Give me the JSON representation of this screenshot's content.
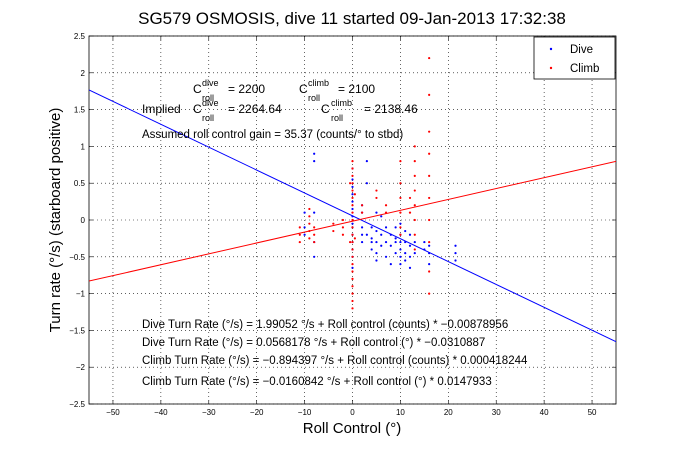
{
  "chart_data": {
    "type": "scatter",
    "title": "SG579 OSMOSIS, dive 11 started 09-Jan-2013 17:32:38",
    "xlabel": "Roll Control (°)",
    "ylabel": "Turn rate (°/s) (starboard positive)",
    "xlim": [
      -55,
      55
    ],
    "ylim": [
      -2.5,
      2.5
    ],
    "xticks": [
      -50,
      -40,
      -30,
      -20,
      -10,
      0,
      10,
      20,
      30,
      40,
      50
    ],
    "yticks": [
      -2.5,
      -2,
      -1.5,
      -1,
      -0.5,
      0,
      0.5,
      1,
      1.5,
      2,
      2.5
    ],
    "xtick_labels": [
      "−50",
      "−40",
      "−30",
      "−20",
      "−10",
      "0",
      "10",
      "20",
      "30",
      "40",
      "50"
    ],
    "ytick_labels": [
      "−2.5",
      "−2",
      "−1.5",
      "−1",
      "−0.5",
      "0",
      "0.5",
      "1",
      "1.5",
      "2",
      "2.5"
    ],
    "grid": true,
    "grid_style": "dotted",
    "legend_position": "top-right",
    "series": [
      {
        "name": "Dive",
        "color": "#0000ff",
        "marker": "dot",
        "points": [
          [
            0,
            0.7
          ],
          [
            0,
            0.55
          ],
          [
            0,
            0.45
          ],
          [
            0,
            0.35
          ],
          [
            0,
            0.25
          ],
          [
            0,
            0.15
          ],
          [
            0,
            0.05
          ],
          [
            0,
            -0.05
          ],
          [
            0,
            -0.1
          ],
          [
            0,
            -0.2
          ],
          [
            0,
            -0.3
          ],
          [
            0,
            -0.4
          ],
          [
            0,
            -0.5
          ],
          [
            0,
            -0.65
          ],
          [
            -8,
            0.9
          ],
          [
            -8,
            0.8
          ],
          [
            -8,
            0.1
          ],
          [
            -8,
            -0.3
          ],
          [
            -8,
            -0.5
          ],
          [
            -10,
            0.1
          ],
          [
            -10,
            -0.1
          ],
          [
            -10,
            -0.2
          ],
          [
            2,
            0.2
          ],
          [
            2,
            0.1
          ],
          [
            2,
            -0.1
          ],
          [
            2,
            -0.2
          ],
          [
            2,
            -0.3
          ],
          [
            3,
            0.8
          ],
          [
            3,
            0.5
          ],
          [
            3,
            -0.2
          ],
          [
            4,
            -0.1
          ],
          [
            4,
            -0.25
          ],
          [
            4,
            -0.3
          ],
          [
            4,
            -0.4
          ],
          [
            5,
            0.1
          ],
          [
            5,
            -0.15
          ],
          [
            5,
            -0.3
          ],
          [
            5,
            -0.45
          ],
          [
            5,
            -0.55
          ],
          [
            6,
            0.05
          ],
          [
            6,
            -0.2
          ],
          [
            6,
            -0.35
          ],
          [
            7,
            -0.1
          ],
          [
            7,
            -0.3
          ],
          [
            7,
            -0.5
          ],
          [
            8,
            -0.2
          ],
          [
            8,
            -0.35
          ],
          [
            8,
            -0.6
          ],
          [
            9,
            -0.1
          ],
          [
            9,
            -0.25
          ],
          [
            9,
            -0.3
          ],
          [
            9,
            -0.45
          ],
          [
            10,
            -0.05
          ],
          [
            10,
            -0.2
          ],
          [
            10,
            -0.3
          ],
          [
            10,
            -0.4
          ],
          [
            10,
            -0.5
          ],
          [
            10,
            -0.6
          ],
          [
            11,
            -0.15
          ],
          [
            11,
            -0.3
          ],
          [
            11,
            -0.45
          ],
          [
            11,
            -0.55
          ],
          [
            12,
            -0.2
          ],
          [
            12,
            -0.35
          ],
          [
            12,
            -0.5
          ],
          [
            12,
            -0.65
          ],
          [
            13,
            -0.3
          ],
          [
            13,
            -0.45
          ],
          [
            15,
            -0.3
          ],
          [
            15,
            -0.4
          ],
          [
            16,
            -0.35
          ],
          [
            16,
            -0.45
          ],
          [
            16,
            -0.6
          ],
          [
            21.5,
            -0.35
          ],
          [
            21.5,
            -0.45
          ],
          [
            21.5,
            -0.55
          ]
        ]
      },
      {
        "name": "Climb",
        "color": "#ff0000",
        "marker": "dot",
        "points": [
          [
            0,
            0.8
          ],
          [
            0,
            0.7
          ],
          [
            0,
            0.6
          ],
          [
            0,
            0.5
          ],
          [
            0,
            0.4
          ],
          [
            0,
            0.3
          ],
          [
            0,
            0.2
          ],
          [
            0,
            0.1
          ],
          [
            0,
            0.0
          ],
          [
            0,
            -0.1
          ],
          [
            0,
            -0.2
          ],
          [
            0,
            -0.3
          ],
          [
            0,
            -0.4
          ],
          [
            0,
            -0.5
          ],
          [
            0,
            -0.6
          ],
          [
            0,
            -0.7
          ],
          [
            0,
            -0.8
          ],
          [
            0,
            -0.9
          ],
          [
            0,
            -1.0
          ],
          [
            0,
            -1.1
          ],
          [
            0,
            -1.2
          ],
          [
            -0.5,
            0.5
          ],
          [
            -0.5,
            -0.3
          ],
          [
            0.5,
            0.35
          ],
          [
            0.5,
            -0.25
          ],
          [
            -11,
            -0.1
          ],
          [
            -11,
            -0.2
          ],
          [
            -11,
            -0.3
          ],
          [
            -9,
            0.15
          ],
          [
            -9,
            0.05
          ],
          [
            -9,
            -0.05
          ],
          [
            -9,
            -0.15
          ],
          [
            -9,
            -0.25
          ],
          [
            -8,
            -0.1
          ],
          [
            -8,
            -0.2
          ],
          [
            -8,
            -0.3
          ],
          [
            -4,
            -0.05
          ],
          [
            -4,
            -0.15
          ],
          [
            -2,
            0.0
          ],
          [
            -2,
            -0.1
          ],
          [
            -2,
            -0.2
          ],
          [
            2,
            0.2
          ],
          [
            2,
            0.1
          ],
          [
            5,
            0.4
          ],
          [
            5,
            0.3
          ],
          [
            7,
            0.2
          ],
          [
            7,
            0.1
          ],
          [
            10,
            0.8
          ],
          [
            10,
            0.5
          ],
          [
            10,
            0.3
          ],
          [
            10,
            0.1
          ],
          [
            10,
            -0.1
          ],
          [
            10,
            -0.2
          ],
          [
            12,
            0.3
          ],
          [
            12,
            0.1
          ],
          [
            13,
            1.0
          ],
          [
            13,
            0.8
          ],
          [
            13,
            0.6
          ],
          [
            13,
            0.4
          ],
          [
            13,
            0.2
          ],
          [
            13,
            0.0
          ],
          [
            13,
            -0.2
          ],
          [
            13,
            -0.4
          ],
          [
            16,
            2.2
          ],
          [
            16,
            1.7
          ],
          [
            16,
            1.2
          ],
          [
            16,
            0.9
          ],
          [
            16,
            0.6
          ],
          [
            16,
            0.3
          ],
          [
            16,
            0.0
          ],
          [
            16,
            -0.3
          ],
          [
            16,
            -0.7
          ],
          [
            16,
            -1.0
          ]
        ]
      }
    ],
    "fit_lines": [
      {
        "series": "Dive",
        "color": "#0000ff",
        "intercept": 0.0568178,
        "slope": -0.0310887
      },
      {
        "series": "Climb",
        "color": "#ff0000",
        "intercept": -0.0160842,
        "slope": 0.0147933
      }
    ]
  },
  "annotations": {
    "c_roll": {
      "symbol": "C",
      "roll_sub": "roll",
      "dive_sup": "dive",
      "climb_sup": "climb",
      "dive_value": "= 2200",
      "climb_value": "= 2100",
      "implied_label": "Implied",
      "implied_dive_value": "= 2264.64",
      "implied_climb_value": "= 2138.46"
    },
    "gain_line": "Assumed roll control gain = 35.37 (counts/° to stbd)",
    "equations": [
      "Dive Turn Rate (°/s) = 1.99052 °/s + Roll control (counts) * −0.00878956",
      "Dive Turn Rate (°/s) = 0.0568178 °/s + Roll control (°) * −0.0310887",
      "Climb Turn Rate (°/s) = −0.894397 °/s + Roll control (counts) * 0.000418244",
      "Climb Turn Rate (°/s) = −0.0160842 °/s + Roll control (°) * 0.0147933"
    ]
  }
}
